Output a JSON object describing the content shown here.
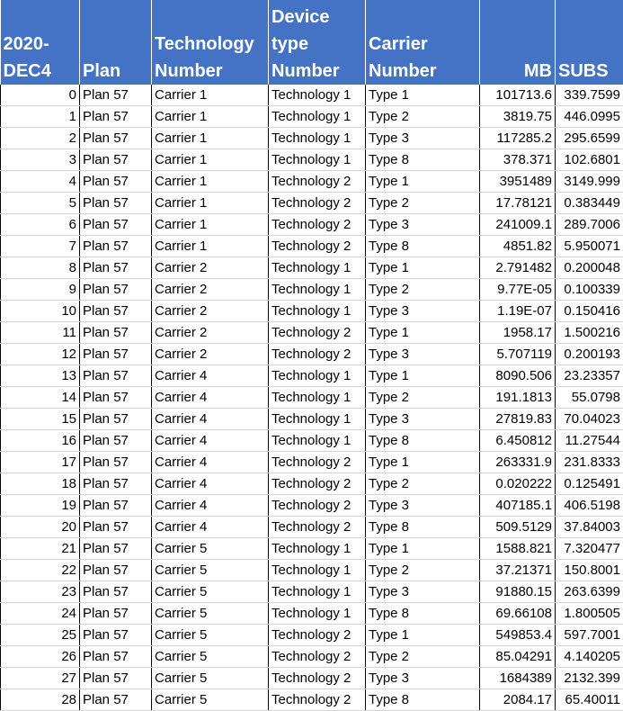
{
  "columns": [
    "2020-DEC4",
    "Plan",
    "Technology Number",
    "Device type Number",
    "Carrier Number",
    "MB",
    "SUBS"
  ],
  "rows": [
    [
      "0",
      "Plan 57",
      "Carrier 1",
      "Technology 1",
      "Type 1",
      "101713.6",
      "339.7599"
    ],
    [
      "1",
      "Plan 57",
      "Carrier 1",
      "Technology 1",
      "Type 2",
      "3819.75",
      "446.0995"
    ],
    [
      "2",
      "Plan 57",
      "Carrier 1",
      "Technology 1",
      "Type 3",
      "117285.2",
      "295.6599"
    ],
    [
      "3",
      "Plan 57",
      "Carrier 1",
      "Technology 1",
      "Type 8",
      "378.371",
      "102.6801"
    ],
    [
      "4",
      "Plan 57",
      "Carrier 1",
      "Technology 2",
      "Type 1",
      "3951489",
      "3149.999"
    ],
    [
      "5",
      "Plan 57",
      "Carrier 1",
      "Technology 2",
      "Type 2",
      "17.78121",
      "0.383449"
    ],
    [
      "6",
      "Plan 57",
      "Carrier 1",
      "Technology 2",
      "Type 3",
      "241009.1",
      "289.7006"
    ],
    [
      "7",
      "Plan 57",
      "Carrier 1",
      "Technology 2",
      "Type 8",
      "4851.82",
      "5.950071"
    ],
    [
      "8",
      "Plan 57",
      "Carrier 2",
      "Technology 1",
      "Type 1",
      "2.791482",
      "0.200048"
    ],
    [
      "9",
      "Plan 57",
      "Carrier 2",
      "Technology 1",
      "Type 2",
      "9.77E-05",
      "0.100339"
    ],
    [
      "10",
      "Plan 57",
      "Carrier 2",
      "Technology 1",
      "Type 3",
      "1.19E-07",
      "0.150416"
    ],
    [
      "11",
      "Plan 57",
      "Carrier 2",
      "Technology 2",
      "Type 1",
      "1958.17",
      "1.500216"
    ],
    [
      "12",
      "Plan 57",
      "Carrier 2",
      "Technology 2",
      "Type 3",
      "5.707119",
      "0.200193"
    ],
    [
      "13",
      "Plan 57",
      "Carrier 4",
      "Technology 1",
      "Type 1",
      "8090.506",
      "23.23357"
    ],
    [
      "14",
      "Plan 57",
      "Carrier 4",
      "Technology 1",
      "Type 2",
      "191.1813",
      "55.0798"
    ],
    [
      "15",
      "Plan 57",
      "Carrier 4",
      "Technology 1",
      "Type 3",
      "27819.83",
      "70.04023"
    ],
    [
      "16",
      "Plan 57",
      "Carrier 4",
      "Technology 1",
      "Type 8",
      "6.450812",
      "11.27544"
    ],
    [
      "17",
      "Plan 57",
      "Carrier 4",
      "Technology 2",
      "Type 1",
      "263331.9",
      "231.8333"
    ],
    [
      "18",
      "Plan 57",
      "Carrier 4",
      "Technology 2",
      "Type 2",
      "0.020222",
      "0.125491"
    ],
    [
      "19",
      "Plan 57",
      "Carrier 4",
      "Technology 2",
      "Type 3",
      "407185.1",
      "406.5198"
    ],
    [
      "20",
      "Plan 57",
      "Carrier 4",
      "Technology 2",
      "Type 8",
      "509.5129",
      "37.84003"
    ],
    [
      "21",
      "Plan 57",
      "Carrier 5",
      "Technology 1",
      "Type 1",
      "1588.821",
      "7.320477"
    ],
    [
      "22",
      "Plan 57",
      "Carrier 5",
      "Technology 1",
      "Type 2",
      "37.21371",
      "150.8001"
    ],
    [
      "23",
      "Plan 57",
      "Carrier 5",
      "Technology 1",
      "Type 3",
      "91880.15",
      "263.6399"
    ],
    [
      "24",
      "Plan 57",
      "Carrier 5",
      "Technology 1",
      "Type 8",
      "69.66108",
      "1.800505"
    ],
    [
      "25",
      "Plan 57",
      "Carrier 5",
      "Technology 2",
      "Type 1",
      "549853.4",
      "597.7001"
    ],
    [
      "26",
      "Plan 57",
      "Carrier 5",
      "Technology 2",
      "Type 2",
      "85.04291",
      "4.140205"
    ],
    [
      "27",
      "Plan 57",
      "Carrier 5",
      "Technology 2",
      "Type 3",
      "1684389",
      "2132.399"
    ],
    [
      "28",
      "Plan 57",
      "Carrier 5",
      "Technology 2",
      "Type 8",
      "2084.17",
      "65.40011"
    ]
  ]
}
